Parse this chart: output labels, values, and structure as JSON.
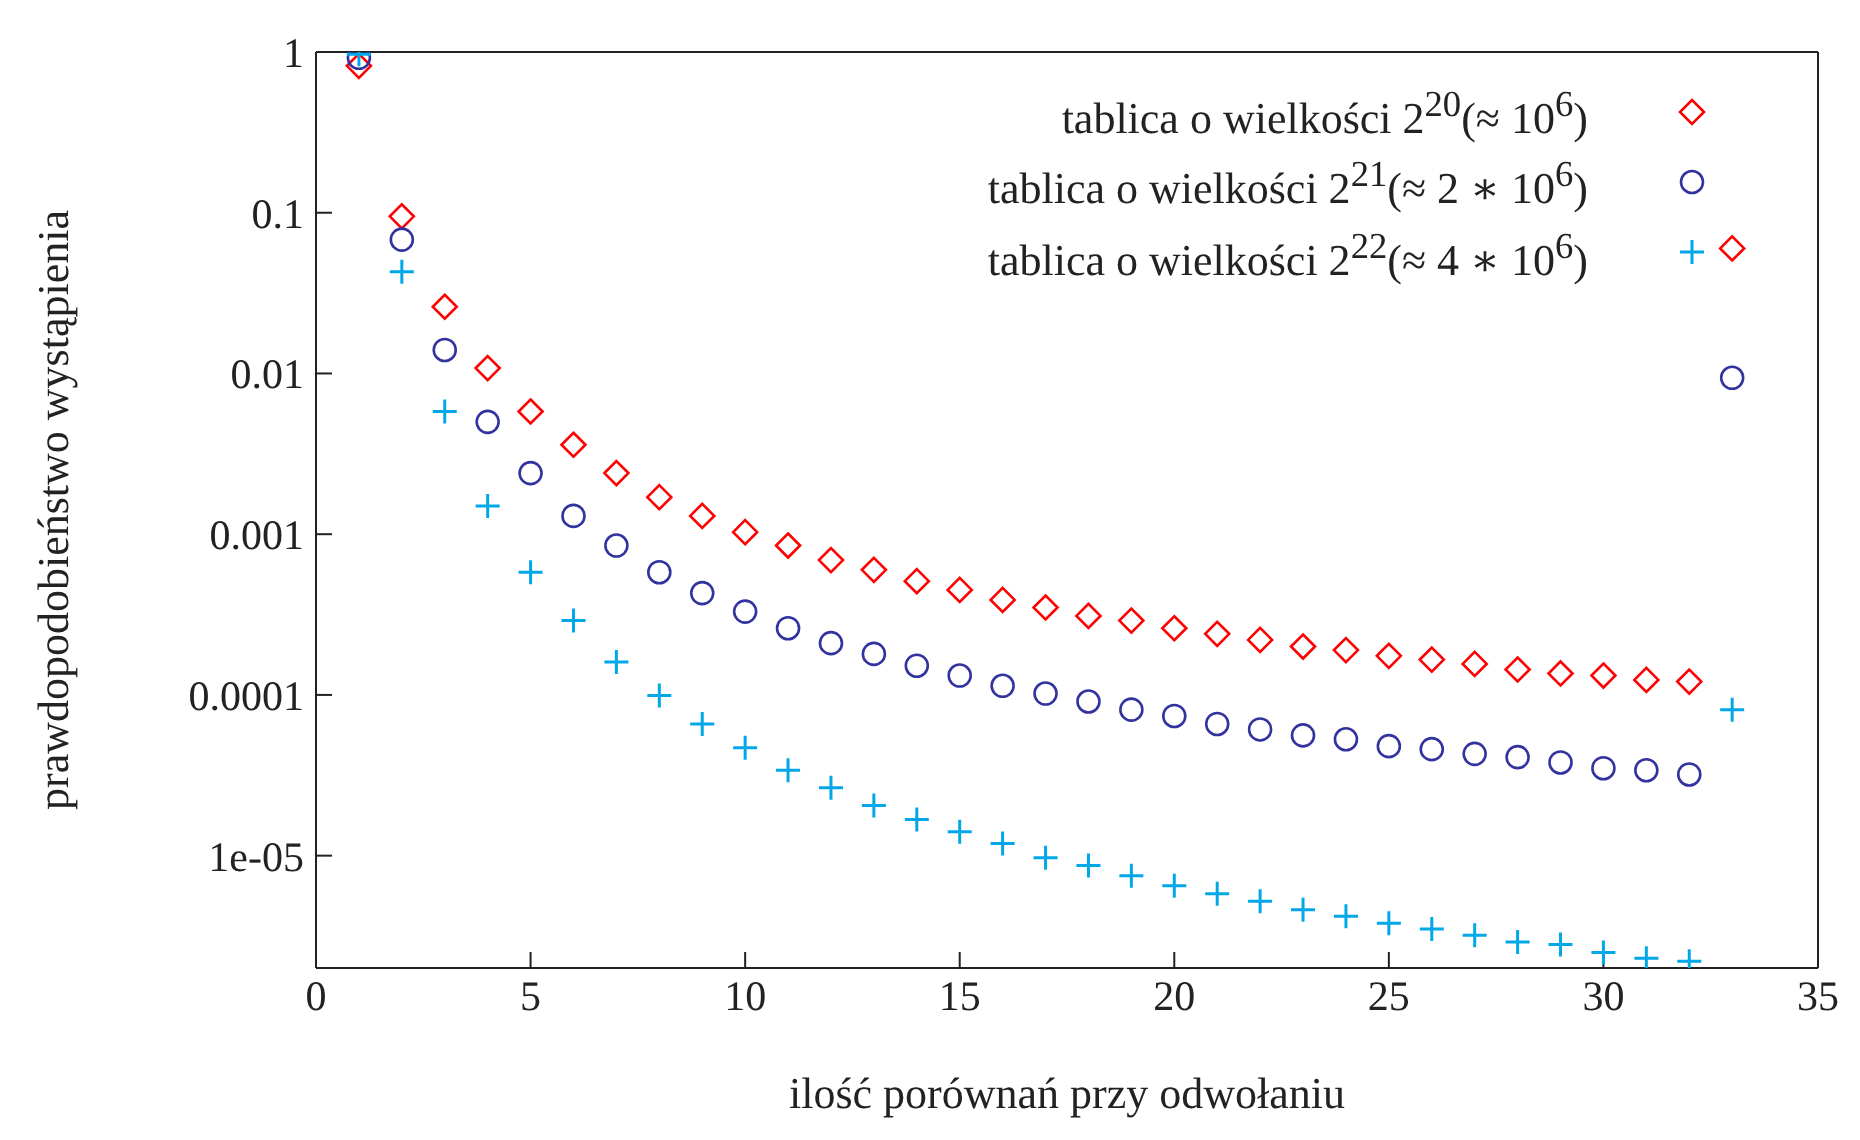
{
  "chart_data": {
    "type": "scatter",
    "xlabel": "ilość porównań przy odwołaniu",
    "ylabel": "prawdopodobieństwo wystąpienia",
    "x": [
      1,
      2,
      3,
      4,
      5,
      6,
      7,
      8,
      9,
      10,
      11,
      12,
      13,
      14,
      15,
      16,
      17,
      18,
      19,
      20,
      21,
      22,
      23,
      24,
      25,
      26,
      27,
      28,
      29,
      30,
      31,
      32,
      33
    ],
    "series": [
      {
        "name": "tablica o wielkości 2$^{20}$(≈ 10$^{6}$)",
        "color": "#ff0000",
        "marker": "diamond",
        "values": [
          0.82,
          0.095,
          0.026,
          0.0108,
          0.0058,
          0.0036,
          0.0024,
          0.0017,
          0.0013,
          0.00103,
          0.00085,
          0.00069,
          0.0006,
          0.00051,
          0.00045,
          0.00039,
          0.00035,
          0.00031,
          0.00029,
          0.00026,
          0.00024,
          0.00022,
          0.0002,
          0.00019,
          0.000175,
          0.000166,
          0.000156,
          0.000144,
          0.000136,
          0.000132,
          0.000124,
          0.000121,
          0.06
        ]
      },
      {
        "name": "tablica o wielkości 2$^{21}$(≈ 2 ∗ 10$^{6}$)",
        "color": "#3333a0",
        "marker": "circle",
        "values": [
          0.92,
          0.068,
          0.014,
          0.005,
          0.0024,
          0.0013,
          0.00085,
          0.00058,
          0.00043,
          0.00033,
          0.00026,
          0.00021,
          0.00018,
          0.000152,
          0.000132,
          0.000114,
          0.000102,
          9.1e-05,
          8.1e-05,
          7.4e-05,
          6.6e-05,
          6.1e-05,
          5.6e-05,
          5.3e-05,
          4.8e-05,
          4.6e-05,
          4.3e-05,
          4.1e-05,
          3.8e-05,
          3.5e-05,
          3.4e-05,
          3.2e-05,
          0.0094
        ]
      },
      {
        "name": "tablica o wielkości 2$^{22}$(≈ 4 ∗ 10$^{6}$)",
        "color": "#00a8e8",
        "marker": "cross",
        "values": [
          0.97,
          0.043,
          0.0058,
          0.0015,
          0.00058,
          0.00029,
          0.00016,
          9.9e-05,
          6.6e-05,
          4.7e-05,
          3.4e-05,
          2.65e-05,
          2.05e-05,
          1.68e-05,
          1.41e-05,
          1.19e-05,
          9.7e-06,
          8.7e-06,
          7.5e-06,
          6.5e-06,
          5.8e-06,
          5.2e-06,
          4.6e-06,
          4.2e-06,
          3.8e-06,
          3.5e-06,
          3.2e-06,
          2.9e-06,
          2.8e-06,
          2.5e-06,
          2.3e-06,
          2.2e-06,
          8.1e-05
        ]
      }
    ],
    "xlim": [
      0,
      35
    ],
    "xticks": [
      0,
      5,
      10,
      15,
      20,
      25,
      30,
      35
    ],
    "ylim": [
      2e-06,
      1
    ],
    "yticks": [
      1,
      0.1,
      0.01,
      0.001,
      0.0001,
      {
        "value": 1e-05,
        "label": "1e-05"
      }
    ],
    "log": "y",
    "grid": false,
    "legend": "top right"
  }
}
